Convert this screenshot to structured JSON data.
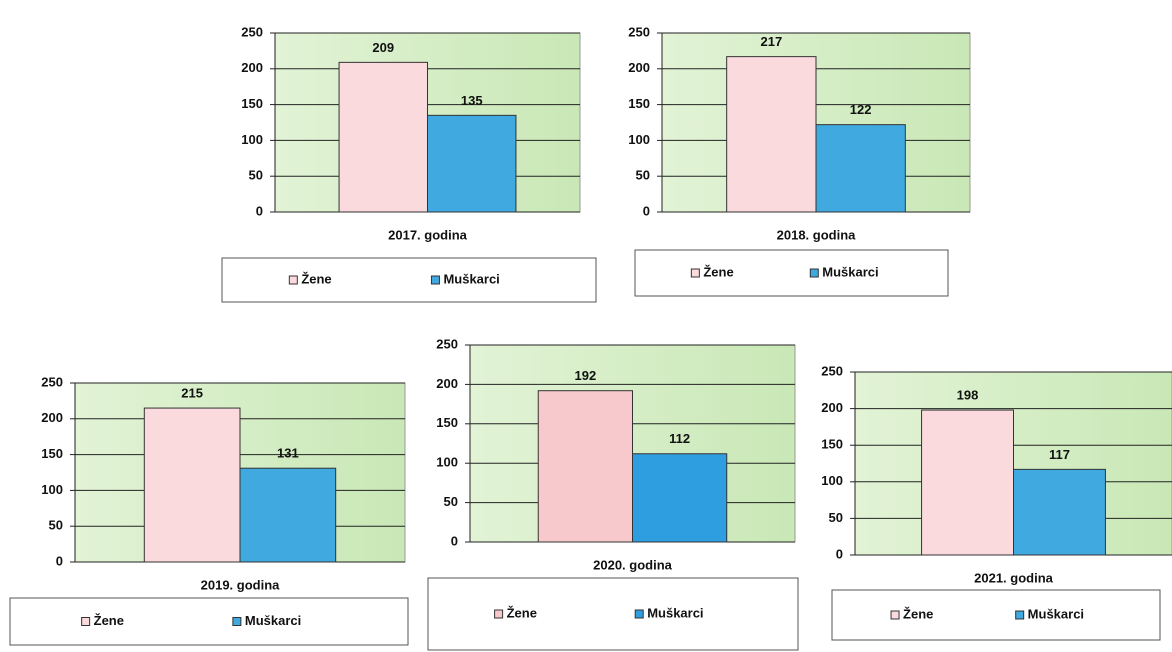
{
  "chart_data": [
    {
      "type": "bar",
      "categories": [
        "2017. godina"
      ],
      "series": [
        {
          "name": "Žene",
          "color": "#fadadd",
          "values": [
            209
          ]
        },
        {
          "name": "Muškarci",
          "color": "#3fa9e0",
          "values": [
            135
          ]
        }
      ],
      "ylim": [
        0,
        250
      ],
      "yticks": [
        0,
        50,
        100,
        150,
        200,
        250
      ],
      "grid": true
    },
    {
      "type": "bar",
      "categories": [
        "2018. godina"
      ],
      "series": [
        {
          "name": "Žene",
          "color": "#fadadd",
          "values": [
            217
          ]
        },
        {
          "name": "Muškarci",
          "color": "#3fa9e0",
          "values": [
            122
          ]
        }
      ],
      "ylim": [
        0,
        250
      ],
      "yticks": [
        0,
        50,
        100,
        150,
        200,
        250
      ],
      "grid": true
    },
    {
      "type": "bar",
      "categories": [
        "2019. godina"
      ],
      "series": [
        {
          "name": "Žene",
          "color": "#fadadd",
          "values": [
            215
          ]
        },
        {
          "name": "Muškarci",
          "color": "#3fa9e0",
          "values": [
            131
          ]
        }
      ],
      "ylim": [
        0,
        250
      ],
      "yticks": [
        0,
        50,
        100,
        150,
        200,
        250
      ],
      "grid": true
    },
    {
      "type": "bar",
      "categories": [
        "2020. godina"
      ],
      "series": [
        {
          "name": "Žene",
          "color": "#f7c9cc",
          "values": [
            192
          ]
        },
        {
          "name": "Muškarci",
          "color": "#2f9ee0",
          "values": [
            112
          ]
        }
      ],
      "ylim": [
        0,
        250
      ],
      "yticks": [
        0,
        50,
        100,
        150,
        200,
        250
      ],
      "grid": true
    },
    {
      "type": "bar",
      "categories": [
        "2021. godina"
      ],
      "series": [
        {
          "name": "Žene",
          "color": "#fadadd",
          "values": [
            198
          ]
        },
        {
          "name": "Muškarci",
          "color": "#3fa9e0",
          "values": [
            117
          ]
        }
      ],
      "ylim": [
        0,
        250
      ],
      "yticks": [
        0,
        50,
        100,
        150,
        200,
        250
      ],
      "grid": true
    }
  ]
}
